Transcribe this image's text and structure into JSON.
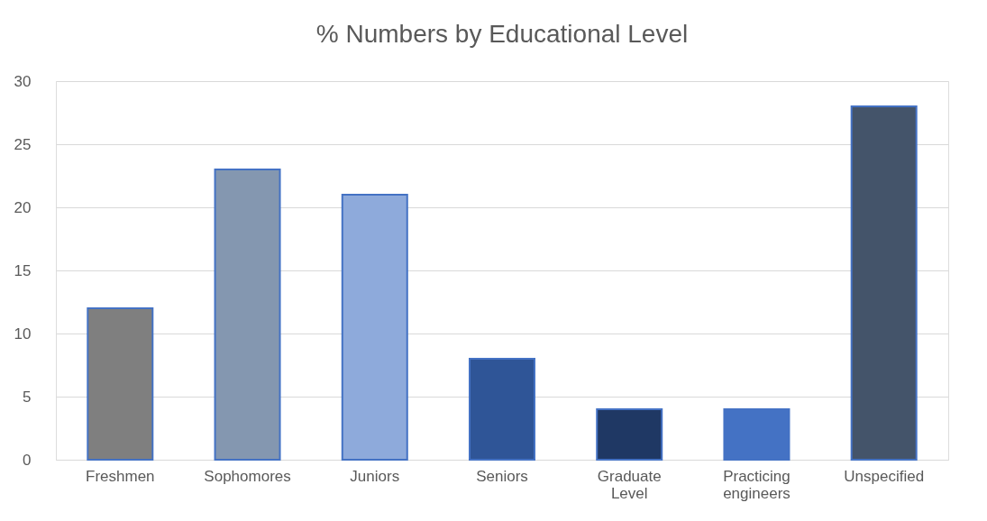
{
  "chart_data": {
    "type": "bar",
    "title": "% Numbers  by Educational  Level",
    "categories": [
      "Freshmen",
      "Sophomores",
      "Juniors",
      "Seniors",
      "Graduate Level",
      "Practicing engineers",
      "Unspecified"
    ],
    "values": [
      12,
      23,
      21,
      8,
      4,
      4,
      28
    ],
    "colors": [
      "#7f7f7f",
      "#8497b0",
      "#8eaadb",
      "#2f5597",
      "#1f3864",
      "#4472c4",
      "#44546a"
    ],
    "ylim": [
      0,
      30
    ],
    "yticks": [
      0,
      5,
      10,
      15,
      20,
      25,
      30
    ],
    "grid": "y"
  }
}
